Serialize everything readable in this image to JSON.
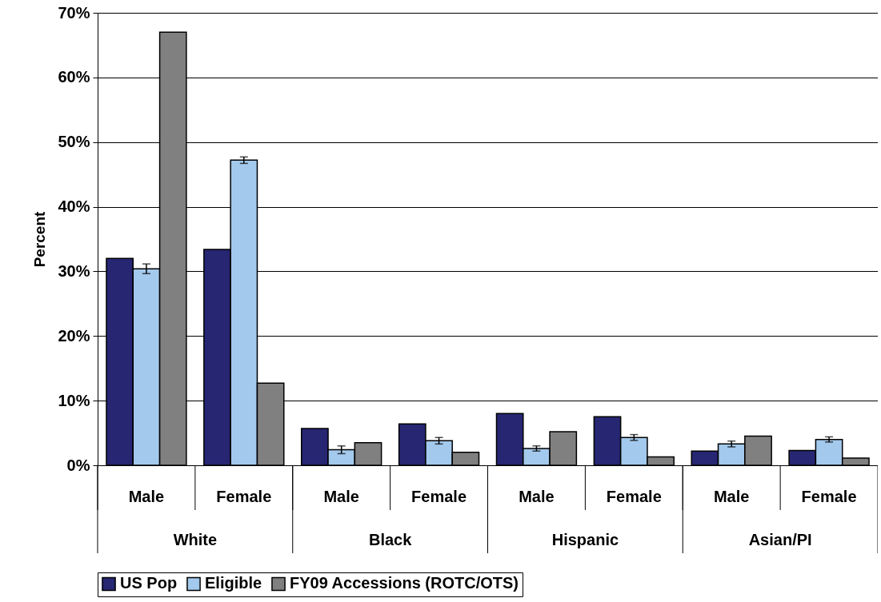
{
  "chart_data": {
    "type": "bar",
    "ylabel": "Percent",
    "categories": [
      "Male",
      "Female",
      "Male",
      "Female",
      "Male",
      "Female",
      "Male",
      "Female"
    ],
    "annotations": [
      "White",
      "Black",
      "Hispanic",
      "Asian/PI"
    ],
    "series": [
      {
        "name": "US Pop",
        "color": "#262672",
        "values": [
          32.0,
          33.4,
          5.7,
          6.4,
          8.0,
          7.5,
          2.2,
          2.3
        ]
      },
      {
        "name": "Eligible",
        "color": "#a3c9ec",
        "values": [
          30.4,
          47.2,
          2.4,
          3.8,
          2.6,
          4.3,
          3.3,
          4.0
        ],
        "errors": [
          0.75,
          0.5,
          0.6,
          0.5,
          0.4,
          0.45,
          0.45,
          0.4
        ]
      },
      {
        "name": "FY09 Accessions (ROTC/OTS)",
        "color": "#808080",
        "values": [
          67.0,
          12.7,
          3.5,
          2.0,
          5.2,
          1.3,
          4.5,
          1.1
        ]
      }
    ],
    "ylim": [
      0,
      70
    ],
    "yticks": [
      {
        "value": 0,
        "label": "0%"
      },
      {
        "value": 10,
        "label": "10%"
      },
      {
        "value": 20,
        "label": "20%"
      },
      {
        "value": 30,
        "label": "30%"
      },
      {
        "value": 40,
        "label": "40%"
      },
      {
        "value": 50,
        "label": "50%"
      },
      {
        "value": 60,
        "label": "60%"
      },
      {
        "value": 70,
        "label": "70%"
      }
    ],
    "grid": "y",
    "legend": "bottom"
  }
}
